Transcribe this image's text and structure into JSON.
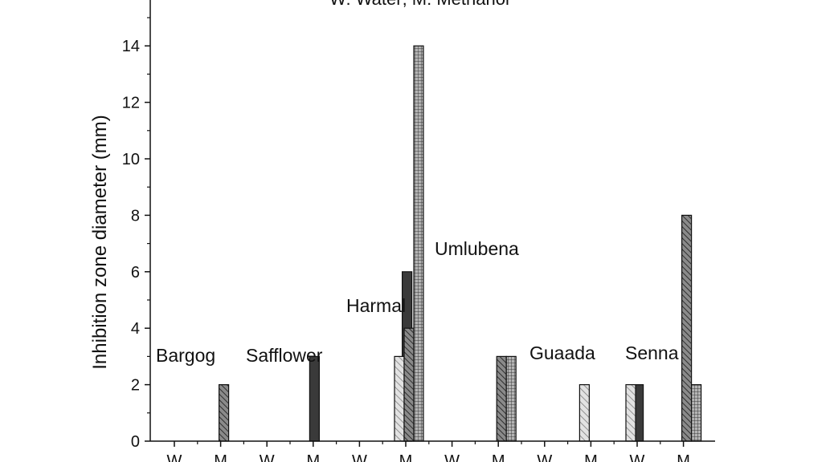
{
  "chart_data": {
    "type": "bar",
    "title": "W: Water; M: Methanol",
    "xlabel": "",
    "ylabel": "Inhibition zone diameter (mm)",
    "ylim": [
      0,
      15.5
    ],
    "yticks": [
      0,
      2,
      4,
      6,
      8,
      10,
      12,
      14
    ],
    "grid": false,
    "x_tick_labels": [
      "W",
      "M",
      "W",
      "M",
      "W",
      "M",
      "W",
      "M",
      "W",
      "M",
      "W",
      "M"
    ],
    "plant_labels": [
      {
        "name": "Bargog",
        "group": 0
      },
      {
        "name": "Safflower",
        "group": 1
      },
      {
        "name": "Harmal",
        "group": 2
      },
      {
        "name": "Umlubena",
        "group": 3
      },
      {
        "name": "Guaada",
        "group": 4
      },
      {
        "name": "Senna",
        "group": 5
      }
    ],
    "series_styles": [
      {
        "pattern": "solid",
        "color": "#3a3a3a"
      },
      {
        "pattern": "diag-light",
        "color": "#c8c8c8"
      },
      {
        "pattern": "diag-dark",
        "color": "#6a6a6a"
      },
      {
        "pattern": "grid",
        "color": "#8a8a8a"
      }
    ],
    "series": [
      {
        "values": [
          0,
          0,
          0,
          0,
          3,
          0,
          6,
          0,
          0,
          0,
          0,
          2
        ]
      },
      {
        "values": [
          0,
          0,
          0,
          0,
          0,
          3,
          0,
          0,
          0,
          2,
          2,
          0
        ]
      },
      {
        "values": [
          0,
          2,
          0,
          0,
          0,
          4,
          0,
          3,
          0,
          0,
          0,
          8
        ]
      },
      {
        "values": [
          0,
          0,
          0,
          0,
          0,
          14,
          0,
          3,
          0,
          0,
          0,
          2
        ]
      }
    ]
  }
}
